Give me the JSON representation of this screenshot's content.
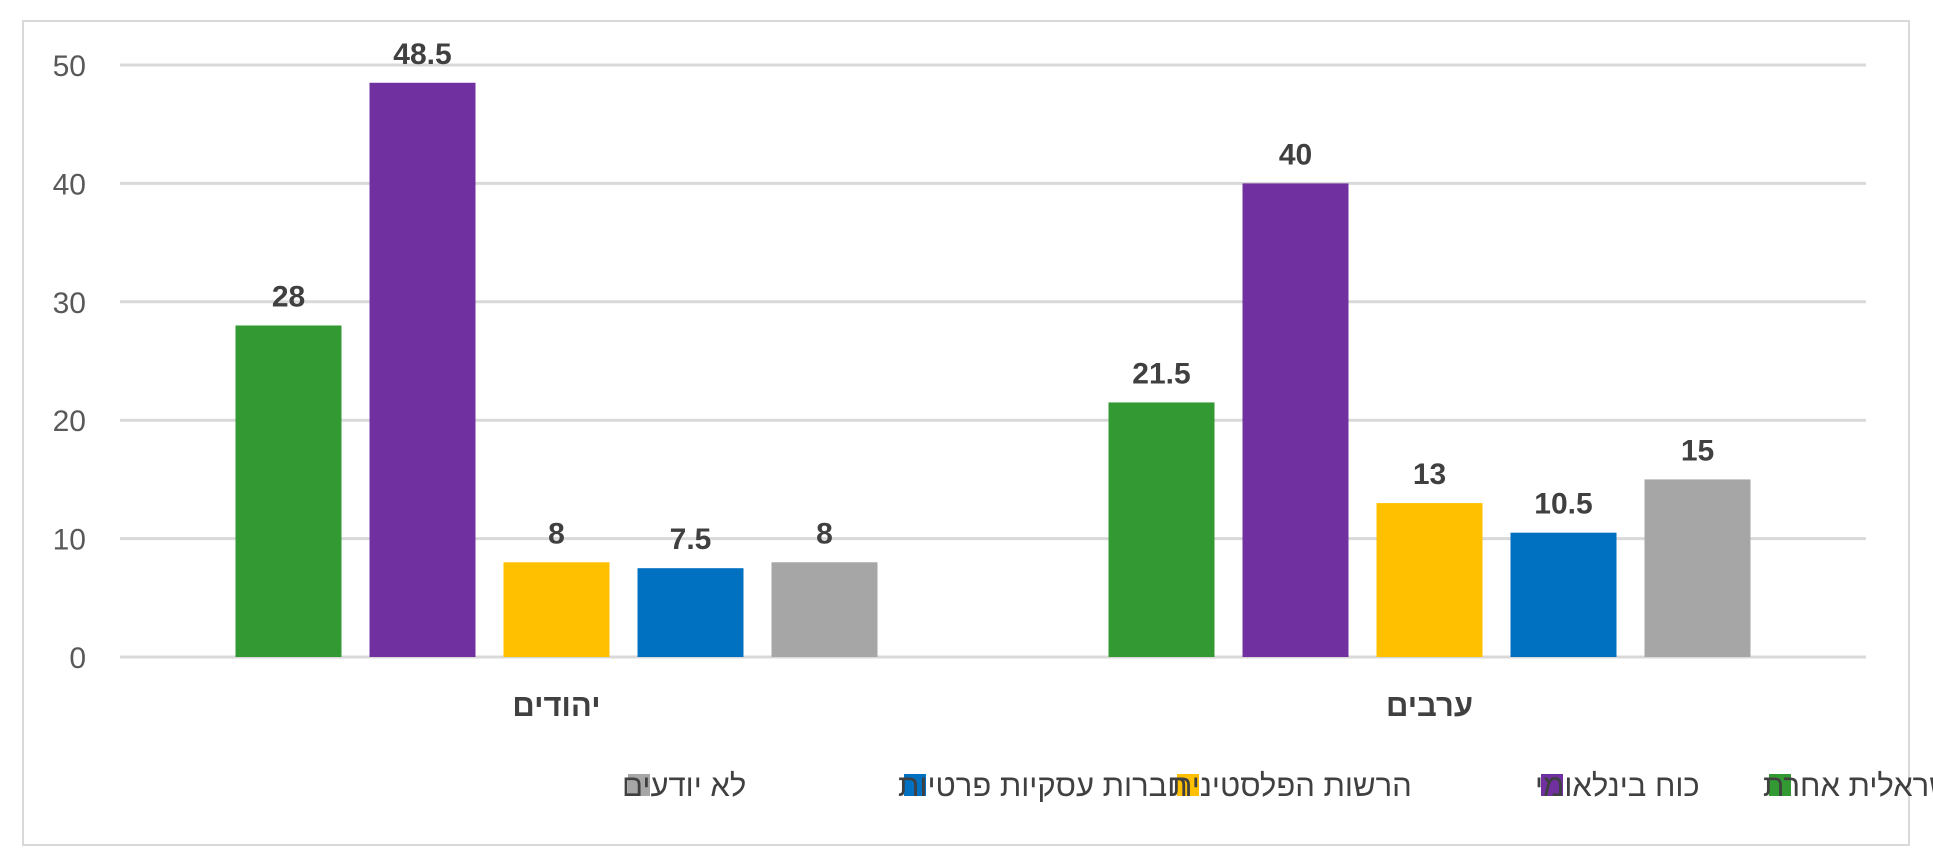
{
  "chart_data": {
    "type": "bar",
    "title": "",
    "xlabel": "",
    "ylabel": "",
    "ylim": [
      0,
      50
    ],
    "yticks": [
      0,
      10,
      20,
      30,
      40,
      50
    ],
    "grid": true,
    "legend_position": "bottom",
    "categories": [
      "יהודים",
      "ערבים"
    ],
    "series": [
      {
        "name": "צה\"ל או רשות ישראלית אחרת",
        "color": "#339933",
        "values": [
          28,
          21.5
        ],
        "labels": [
          "28",
          "21.5"
        ]
      },
      {
        "name": "כוח בינלאומי",
        "color": "#7030a0",
        "values": [
          48.5,
          40
        ],
        "labels": [
          "48.5",
          "40"
        ]
      },
      {
        "name": "הרשות הפלסטינית",
        "color": "#ffc000",
        "values": [
          8,
          13
        ],
        "labels": [
          "8",
          "13"
        ]
      },
      {
        "name": "חברות עסקיות פרטיות",
        "color": "#0070c0",
        "values": [
          7.5,
          10.5
        ],
        "labels": [
          "7.5",
          "10.5"
        ]
      },
      {
        "name": "לא יודעים",
        "color": "#a6a6a6",
        "values": [
          8,
          15
        ],
        "labels": [
          "8",
          "15"
        ]
      }
    ]
  }
}
